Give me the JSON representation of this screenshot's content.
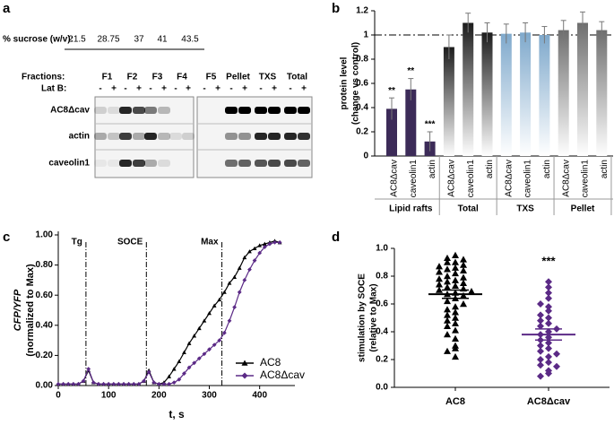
{
  "panel_labels": [
    "a",
    "b",
    "c",
    "d"
  ],
  "blot": {
    "sucrose_label": "% sucrose (w/v):",
    "sucrose": [
      "21.5",
      "28.75",
      "37",
      "41",
      "43.5"
    ],
    "fractions_label": "Fractions:",
    "fractions": [
      "F1",
      "F2",
      "F3",
      "F4",
      "F5",
      "Pellet",
      "TXS",
      "Total"
    ],
    "latb_label": "Lat B:",
    "latb": [
      "-",
      "+",
      "-",
      "+",
      "-",
      "+",
      "-",
      "+",
      "-",
      "+",
      "-",
      "+",
      "-",
      "+",
      "-",
      "+"
    ],
    "rows": [
      "AC8Δcav",
      "actin",
      "caveolin1"
    ]
  },
  "chart_data": [
    {
      "type": "bar",
      "y_label": [
        "protein level",
        "(change vs control)"
      ],
      "ylim": [
        0,
        1.2
      ],
      "yticks": [
        0,
        0.2,
        0.4,
        0.6,
        0.8,
        1,
        1.2
      ],
      "reference_line": 1,
      "groups": [
        {
          "name": "Lipid rafts",
          "color": "#3c2b58",
          "gradient": false,
          "categories": [
            "AC8Δcav",
            "caveolin1",
            "actin"
          ],
          "values": [
            0.39,
            0.55,
            0.12
          ],
          "errors": [
            0.09,
            0.09,
            0.08
          ],
          "annotations": [
            "**",
            "**",
            "***"
          ]
        },
        {
          "name": "Total",
          "color": "#1c1c1c",
          "gradient": true,
          "categories": [
            "AC8Δcav",
            "caveolin1",
            "actin"
          ],
          "values": [
            0.9,
            1.1,
            1.02
          ],
          "errors": [
            0.1,
            0.08,
            0.08
          ]
        },
        {
          "name": "TXS",
          "color": "#7fa9cc",
          "gradient": true,
          "categories": [
            "AC8Δcav",
            "caveolin1",
            "actin"
          ],
          "values": [
            1.01,
            1.02,
            1.0
          ],
          "errors": [
            0.08,
            0.08,
            0.07
          ]
        },
        {
          "name": "Pellet",
          "color": "#6e6e6e",
          "gradient": true,
          "categories": [
            "AC8Δcav",
            "caveolin1",
            "actin"
          ],
          "values": [
            1.04,
            1.1,
            1.04
          ],
          "errors": [
            0.08,
            0.09,
            0.07
          ]
        }
      ]
    },
    {
      "type": "line",
      "y_label": [
        "CFP/YFP",
        "(normalized to Max)"
      ],
      "x_label": "t, s",
      "xlim": [
        0,
        470
      ],
      "xticks": [
        0,
        100,
        200,
        300,
        400
      ],
      "ylim": [
        0,
        1.0
      ],
      "yticks": [
        {
          "value": 0,
          "label": "0.00"
        },
        {
          "value": 0.2,
          "label": "0.20"
        },
        {
          "value": 0.4,
          "label": "0.40"
        },
        {
          "value": 0.6,
          "label": "0.60"
        },
        {
          "value": 0.8,
          "label": "0.80"
        },
        {
          "value": 1.0,
          "label": "1.00"
        }
      ],
      "markers": [
        {
          "label": "Tg",
          "x": 55
        },
        {
          "label": "SOCE",
          "x": 175
        },
        {
          "label": "Max",
          "x": 325
        }
      ],
      "x": [
        0,
        10,
        20,
        30,
        40,
        50,
        60,
        70,
        80,
        90,
        100,
        110,
        120,
        130,
        140,
        150,
        160,
        170,
        180,
        190,
        200,
        210,
        220,
        230,
        240,
        250,
        260,
        270,
        280,
        290,
        300,
        310,
        320,
        330,
        340,
        350,
        360,
        370,
        380,
        390,
        400,
        410,
        420,
        430,
        440
      ],
      "series": [
        {
          "name": "AC8",
          "color": "#000000",
          "marker": "triangle",
          "values": [
            0.01,
            0.01,
            0.01,
            0.01,
            0.01,
            0.03,
            0.1,
            0.02,
            0.01,
            0.01,
            0.01,
            0.01,
            0.01,
            0.01,
            0.01,
            0.01,
            0.01,
            0.03,
            0.1,
            0.02,
            0.01,
            0.02,
            0.06,
            0.11,
            0.16,
            0.22,
            0.28,
            0.33,
            0.38,
            0.43,
            0.48,
            0.53,
            0.57,
            0.62,
            0.68,
            0.72,
            0.78,
            0.85,
            0.89,
            0.91,
            0.93,
            0.94,
            0.95,
            0.96,
            0.95
          ]
        },
        {
          "name": "AC8Δcav",
          "color": "#5b2a86",
          "marker": "diamond",
          "values": [
            0.01,
            0.01,
            0.01,
            0.01,
            0.01,
            0.03,
            0.11,
            0.02,
            0.01,
            0.01,
            0.01,
            0.01,
            0.01,
            0.01,
            0.01,
            0.01,
            0.01,
            0.03,
            0.09,
            0.02,
            0.01,
            0.01,
            0.01,
            0.02,
            0.04,
            0.08,
            0.12,
            0.15,
            0.18,
            0.21,
            0.24,
            0.27,
            0.3,
            0.35,
            0.43,
            0.52,
            0.62,
            0.7,
            0.77,
            0.83,
            0.88,
            0.92,
            0.94,
            0.95,
            0.95
          ]
        }
      ]
    },
    {
      "type": "dot",
      "y_label": [
        "stimulation by SOCE",
        "(relative to Max)"
      ],
      "ylim": [
        0,
        1.0
      ],
      "yticks": [
        {
          "value": 0,
          "label": "0.0"
        },
        {
          "value": 0.2,
          "label": "0.2"
        },
        {
          "value": 0.4,
          "label": "0.4"
        },
        {
          "value": 0.6,
          "label": "0.6"
        },
        {
          "value": 0.8,
          "label": "0.8"
        },
        {
          "value": 1.0,
          "label": "1.0"
        }
      ],
      "categories": [
        "AC8",
        "AC8Δcav"
      ],
      "groups": [
        {
          "color": "#000000",
          "marker": "triangle",
          "mean": 0.67,
          "sem": 0.03,
          "values": [
            0.95,
            0.93,
            0.92,
            0.9,
            0.9,
            0.88,
            0.87,
            0.86,
            0.85,
            0.84,
            0.83,
            0.82,
            0.8,
            0.79,
            0.78,
            0.77,
            0.76,
            0.75,
            0.74,
            0.73,
            0.72,
            0.71,
            0.7,
            0.69,
            0.68,
            0.67,
            0.66,
            0.64,
            0.62,
            0.6,
            0.58,
            0.56,
            0.54,
            0.52,
            0.5,
            0.48,
            0.46,
            0.44,
            0.41,
            0.38,
            0.35,
            0.3,
            0.28,
            0.26,
            0.22
          ]
        },
        {
          "color": "#5b2a86",
          "marker": "diamond",
          "mean": 0.38,
          "sem": 0.04,
          "annotation": "***",
          "values": [
            0.76,
            0.72,
            0.68,
            0.64,
            0.6,
            0.58,
            0.55,
            0.52,
            0.5,
            0.48,
            0.46,
            0.44,
            0.42,
            0.4,
            0.38,
            0.36,
            0.34,
            0.32,
            0.3,
            0.28,
            0.26,
            0.24,
            0.22,
            0.2,
            0.18,
            0.16,
            0.15,
            0.12,
            0.1,
            0.08
          ]
        }
      ]
    }
  ]
}
